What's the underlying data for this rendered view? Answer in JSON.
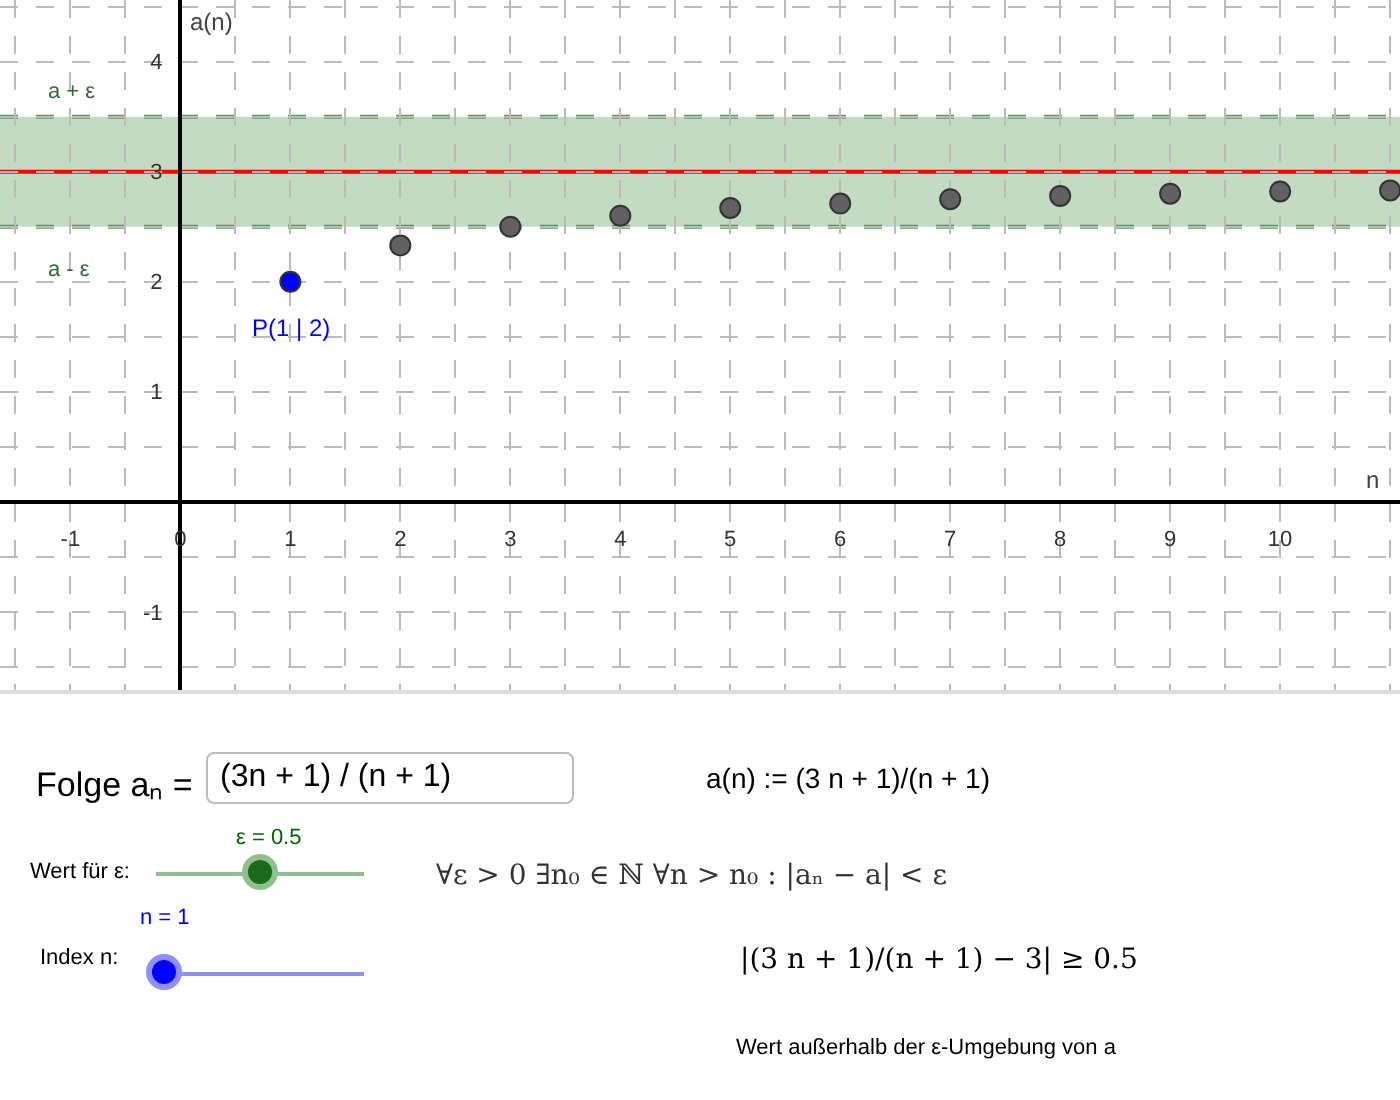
{
  "chart_data": {
    "type": "scatter",
    "xlabel": "n",
    "ylabel": "a(n)",
    "x": [
      1,
      2,
      3,
      4,
      5,
      6,
      7,
      8,
      9,
      10,
      11
    ],
    "values": [
      2,
      2.33,
      2.5,
      2.6,
      2.67,
      2.71,
      2.75,
      2.78,
      2.8,
      2.82,
      2.83
    ],
    "colors": [
      "#0000ff",
      "#616161",
      "#616161",
      "#616161",
      "#616161",
      "#616161",
      "#616161",
      "#616161",
      "#616161",
      "#616161",
      "#616161"
    ],
    "marker": "circle",
    "xlim": [
      -1.64,
      11.09
    ],
    "ylim": [
      -1.71,
      4.56
    ],
    "xticks": [
      -1,
      0,
      1,
      2,
      3,
      4,
      5,
      6,
      7,
      8,
      9,
      10
    ],
    "yticks": [
      -1,
      1,
      2,
      3,
      4
    ],
    "grid": true,
    "bands": [
      {
        "axis": "y",
        "from": 2.5,
        "to": 3.5,
        "color": "#c2dbc2"
      }
    ],
    "ref_lines": [
      {
        "axis": "y",
        "value": 3,
        "color": "#ff0000",
        "line_style": "solid"
      },
      {
        "axis": "y",
        "value": 3.5,
        "label": "a + ε",
        "color": "#5a9a5a",
        "line_style": "dashed"
      },
      {
        "axis": "y",
        "value": 2.5,
        "label": "a - ε",
        "color": "#5a9a5a",
        "line_style": "dashed"
      }
    ],
    "annotations": [
      {
        "text": "P(1 | 2)",
        "x": 1,
        "y": 2
      },
      "Folge aₙ =",
      "(3n + 1) / (n + 1)",
      "a(n) := (3 n + 1)/(n + 1)",
      "ε = 0.5",
      "Wert für ε:",
      "∀ε > 0  ∃n₀ ∈ ℕ  ∀n > n₀ :  |aₙ − a| < ε",
      "n = 1",
      "Index n:",
      "|(3 n + 1)/(n + 1) − 3| ≥ 0.5",
      "Wert außerhalb der ε-Umgebung von a"
    ]
  }
}
